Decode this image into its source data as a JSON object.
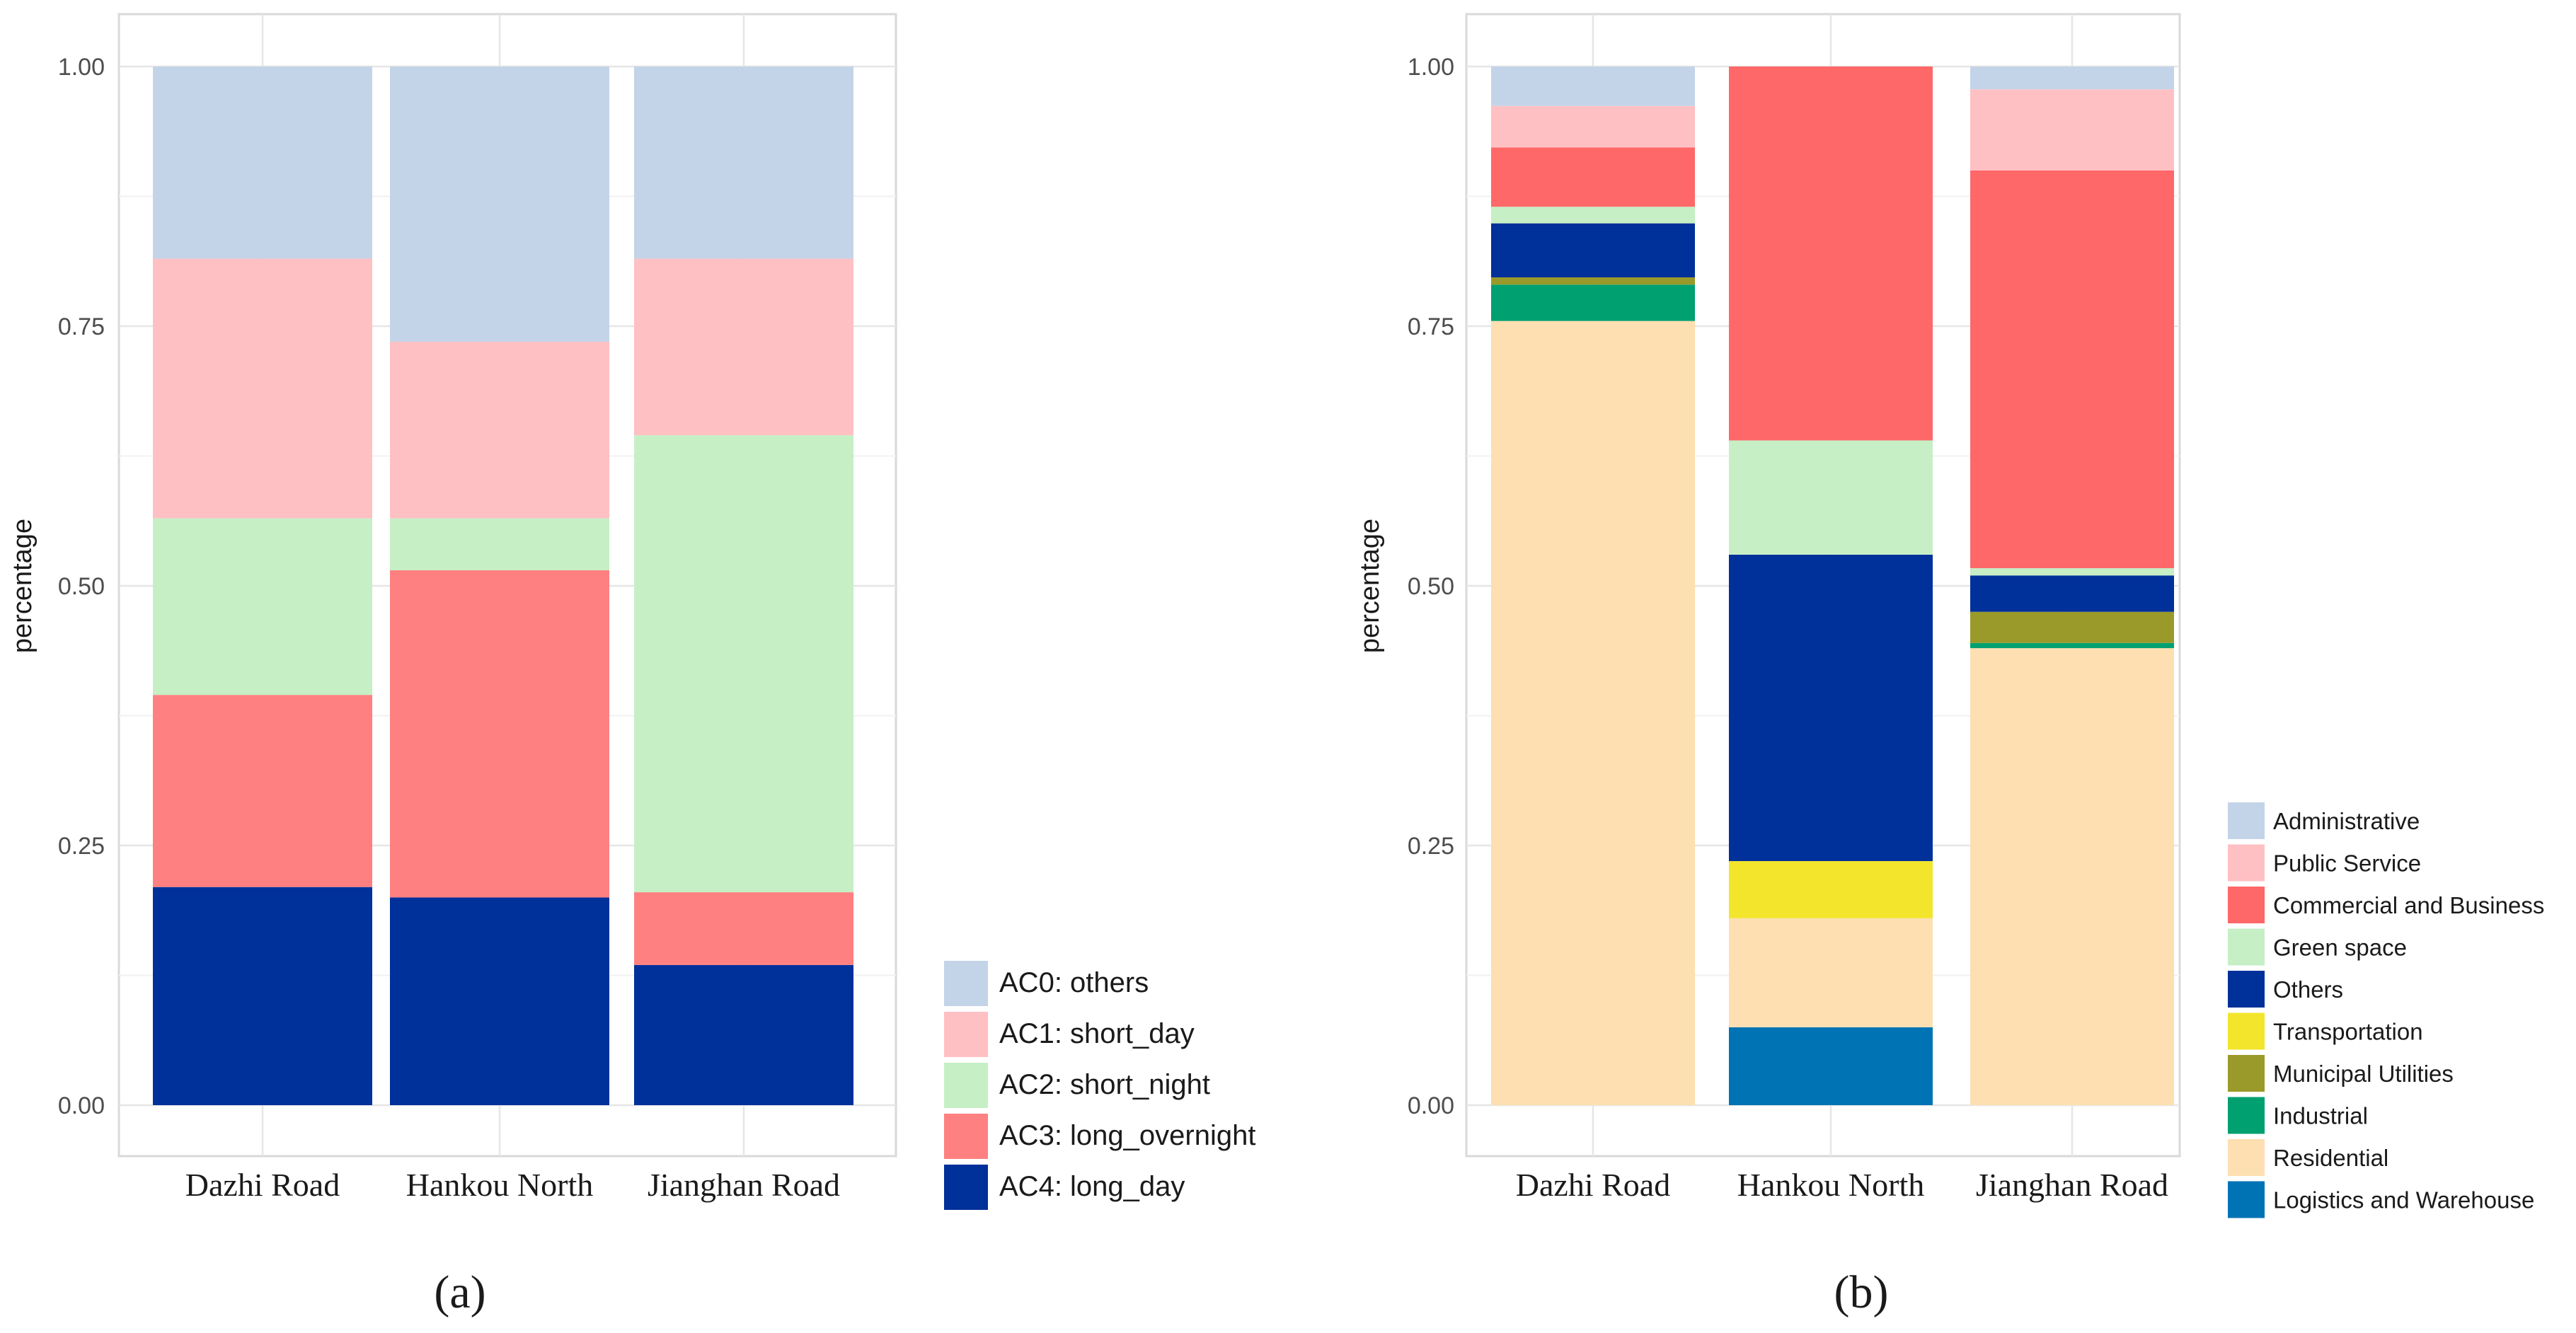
{
  "chart_data": [
    {
      "type": "bar",
      "stacked": true,
      "panel_label": "(a)",
      "categories": [
        "Dazhi Road",
        "Hankou North",
        "Jianghan Road"
      ],
      "ylabel": "percentage",
      "xlabel": "",
      "ylim": [
        0,
        1
      ],
      "yticks": [
        "0.00",
        "0.25",
        "0.50",
        "0.75",
        "1.00"
      ],
      "grid": true,
      "legend_position": "bottom-right",
      "series": [
        {
          "name": "AC4: long_day",
          "color": "#00309A",
          "values": [
            0.21,
            0.2,
            0.135
          ]
        },
        {
          "name": "AC3: long_overnight",
          "color": "#FF8080",
          "values": [
            0.185,
            0.315,
            0.07
          ]
        },
        {
          "name": "AC2: short_night",
          "color": "#C6EFC6",
          "values": [
            0.17,
            0.05,
            0.44
          ]
        },
        {
          "name": "AC1: short_day",
          "color": "#FFC0C3",
          "values": [
            0.25,
            0.17,
            0.17
          ]
        },
        {
          "name": "AC0: others",
          "color": "#C4D4E8",
          "values": [
            0.185,
            0.265,
            0.185
          ]
        }
      ]
    },
    {
      "type": "bar",
      "stacked": true,
      "panel_label": "(b)",
      "categories": [
        "Dazhi Road",
        "Hankou North",
        "Jianghan Road"
      ],
      "ylabel": "percentage",
      "xlabel": "",
      "ylim": [
        0,
        1
      ],
      "yticks": [
        "0.00",
        "0.25",
        "0.50",
        "0.75",
        "1.00"
      ],
      "grid": true,
      "legend_position": "right",
      "series": [
        {
          "name": "Logistics and Warehouse",
          "color": "#0073B5",
          "values": [
            0.0,
            0.075,
            0.0
          ]
        },
        {
          "name": "Residential",
          "color": "#FDDFB1",
          "values": [
            0.755,
            0.105,
            0.44
          ]
        },
        {
          "name": "Industrial",
          "color": "#00A070",
          "values": [
            0.035,
            0.0,
            0.005
          ]
        },
        {
          "name": "Municipal Utilities",
          "color": "#9A9A2A",
          "values": [
            0.007,
            0.0,
            0.03
          ]
        },
        {
          "name": "Transportation",
          "color": "#F2E52C",
          "values": [
            0.0,
            0.055,
            0.0
          ]
        },
        {
          "name": "Others",
          "color": "#00309A",
          "values": [
            0.052,
            0.295,
            0.035
          ]
        },
        {
          "name": "Green space",
          "color": "#C6EFC6",
          "values": [
            0.016,
            0.11,
            0.007
          ]
        },
        {
          "name": "Commercial and Business",
          "color": "#FF6868",
          "values": [
            0.057,
            0.36,
            0.383
          ]
        },
        {
          "name": "Public Service",
          "color": "#FFC0C3",
          "values": [
            0.04,
            0.0,
            0.078
          ]
        },
        {
          "name": "Administrative",
          "color": "#C4D4E8",
          "values": [
            0.038,
            0.0,
            0.022
          ]
        }
      ]
    }
  ]
}
